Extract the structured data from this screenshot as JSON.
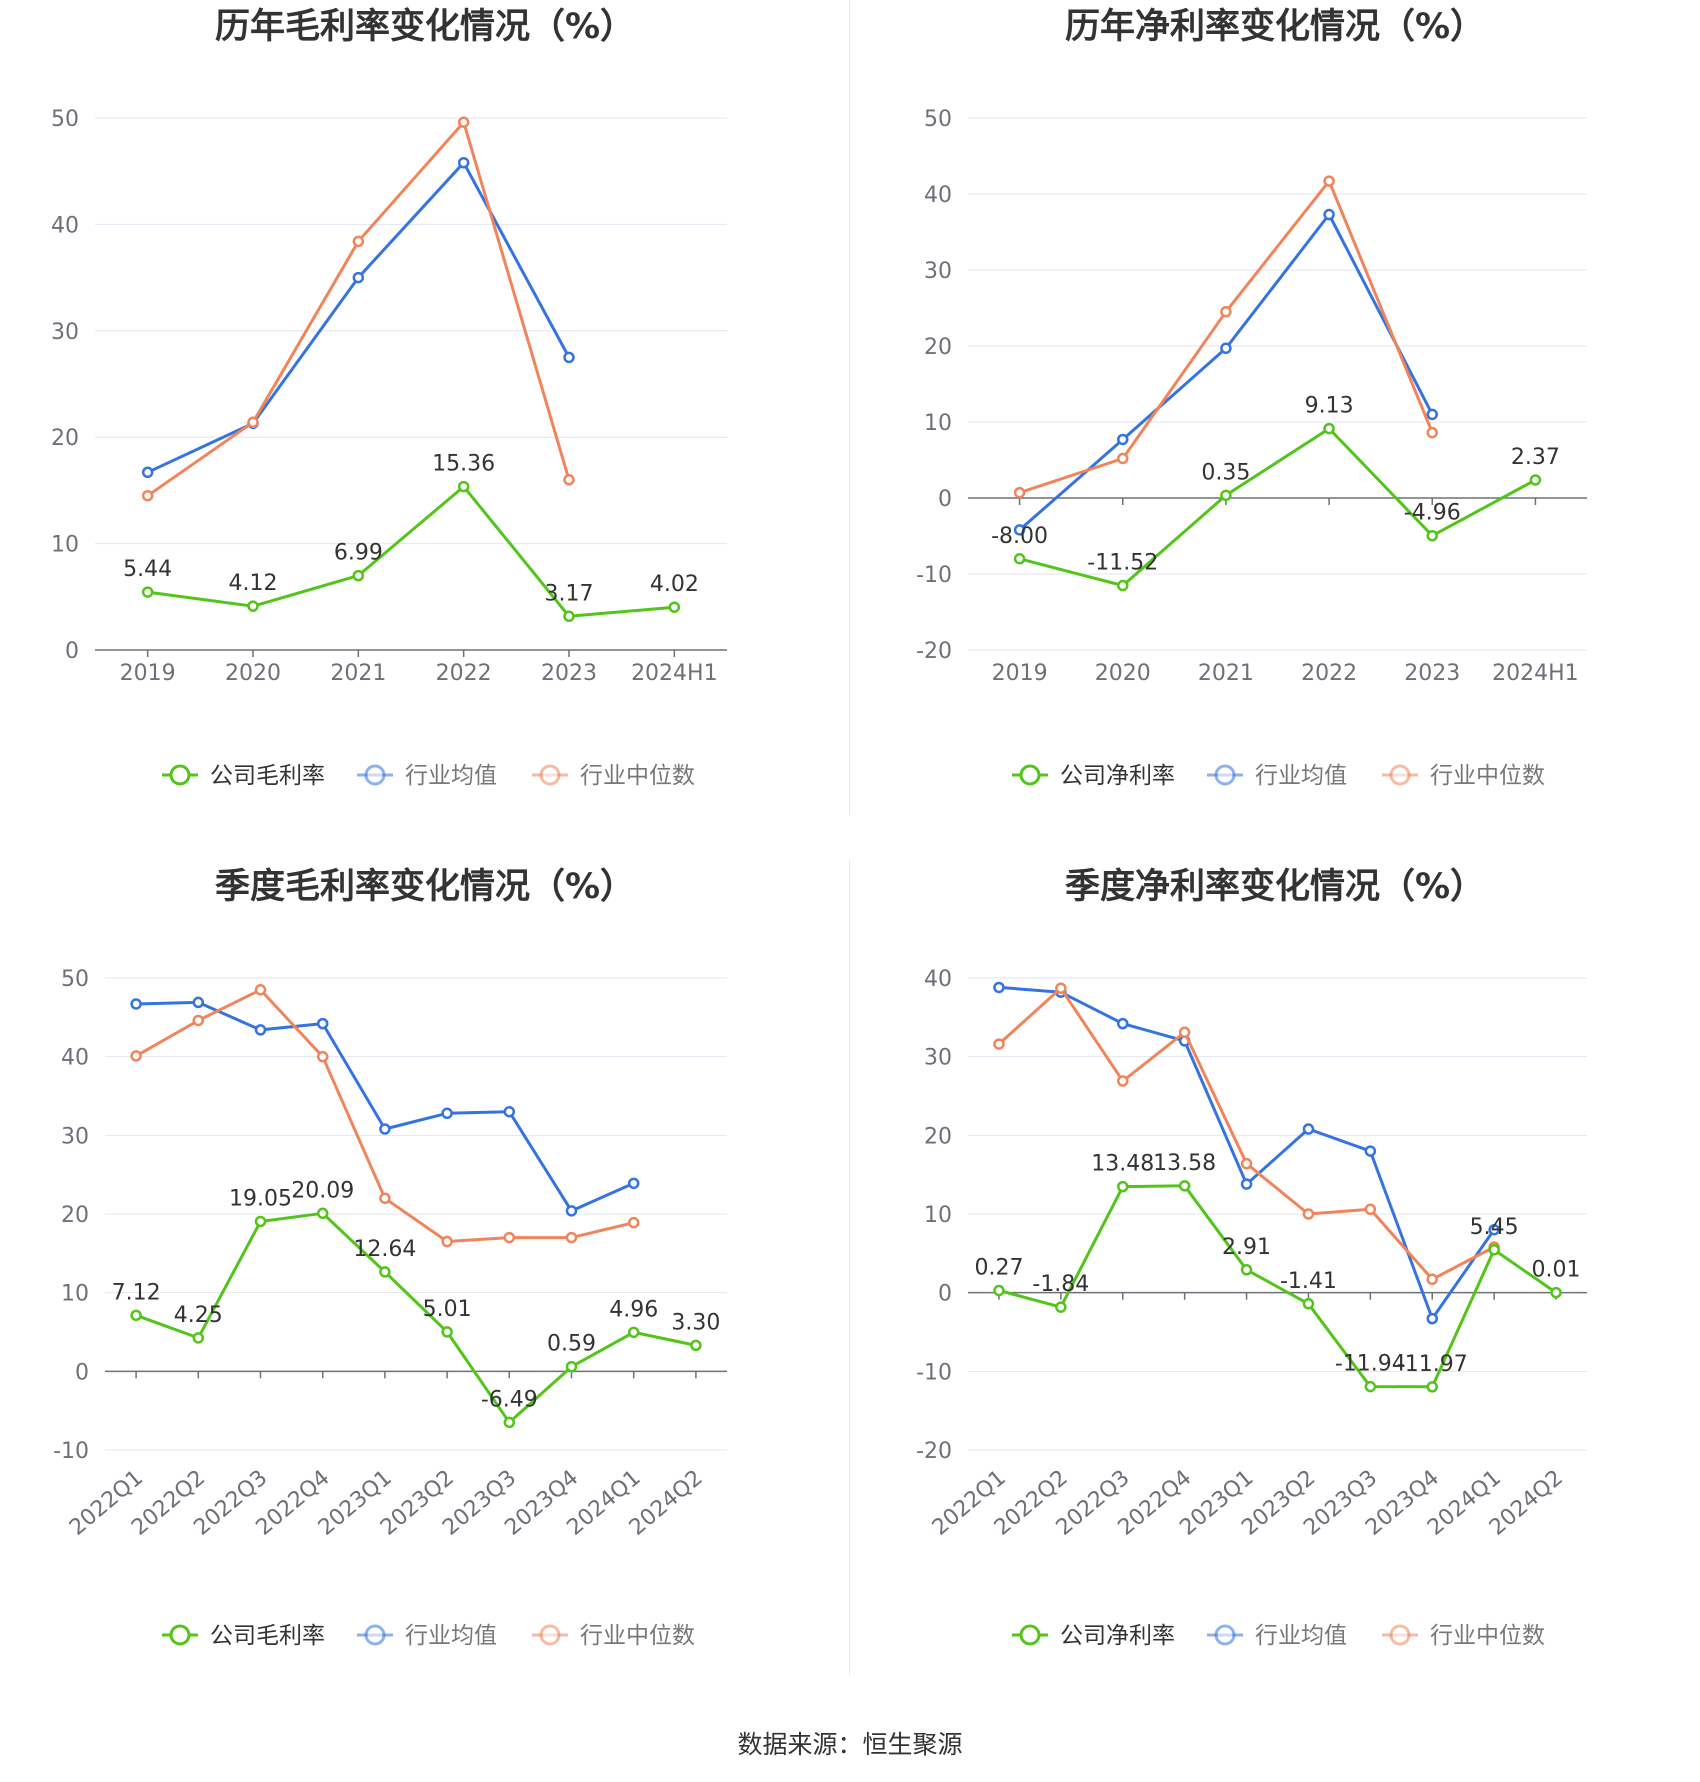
{
  "source_label": "数据来源：恒生聚源",
  "colors": {
    "company": "#52c41a",
    "avg": "#3573e0",
    "median": "#f0845a",
    "grid": "#e0e6f1",
    "axis": "#6e7079"
  },
  "legend_common": {
    "avg": "行业均值",
    "median": "行业中位数"
  },
  "chart_data": [
    {
      "type": "line",
      "title": "历年毛利率变化情况（%）",
      "categories": [
        "2019",
        "2020",
        "2021",
        "2022",
        "2023",
        "2024H1"
      ],
      "ylim": [
        0,
        50
      ],
      "yticks": [
        "0",
        "10",
        "20",
        "30",
        "40",
        "50"
      ],
      "grid": true,
      "legend": "bottom",
      "series": [
        {
          "name": "公司毛利率",
          "values": [
            5.44,
            4.12,
            6.99,
            15.36,
            3.17,
            4.02
          ],
          "labels": [
            "5.44",
            "4.12",
            "6.99",
            "15.36",
            "3.17",
            "4.02"
          ]
        },
        {
          "name": "行业均值",
          "values": [
            16.7,
            21.3,
            35.0,
            45.8,
            27.5,
            null
          ]
        },
        {
          "name": "行业中位数",
          "values": [
            14.5,
            21.4,
            38.4,
            49.6,
            16.0,
            null
          ]
        }
      ]
    },
    {
      "type": "line",
      "title": "历年净利率变化情况（%）",
      "categories": [
        "2019",
        "2020",
        "2021",
        "2022",
        "2023",
        "2024H1"
      ],
      "ylim": [
        -20,
        50
      ],
      "yticks": [
        "-20",
        "-10",
        "0",
        "10",
        "20",
        "30",
        "40",
        "50"
      ],
      "grid": true,
      "legend": "bottom",
      "series": [
        {
          "name": "公司净利率",
          "values": [
            -8.0,
            -11.52,
            0.35,
            9.13,
            -4.96,
            2.37
          ],
          "labels": [
            "-8.00",
            "-11.52",
            "0.35",
            "9.13",
            "-4.96",
            "2.37"
          ]
        },
        {
          "name": "行业均值",
          "values": [
            -4.2,
            7.7,
            19.7,
            37.3,
            11.0,
            null
          ]
        },
        {
          "name": "行业中位数",
          "values": [
            0.7,
            5.2,
            24.5,
            41.7,
            8.6,
            null
          ]
        }
      ]
    },
    {
      "type": "line",
      "title": "季度毛利率变化情况（%）",
      "categories": [
        "2022Q1",
        "2022Q2",
        "2022Q3",
        "2022Q4",
        "2023Q1",
        "2023Q2",
        "2023Q3",
        "2023Q4",
        "2024Q1",
        "2024Q2"
      ],
      "ylim": [
        -10,
        50
      ],
      "yticks": [
        "-10",
        "0",
        "10",
        "20",
        "30",
        "40",
        "50"
      ],
      "grid": true,
      "legend": "bottom",
      "series": [
        {
          "name": "公司毛利率",
          "values": [
            7.12,
            4.25,
            19.05,
            20.09,
            12.64,
            5.01,
            -6.49,
            0.59,
            4.96,
            3.3
          ],
          "labels": [
            "7.12",
            "4.25",
            "19.05",
            "20.09",
            "12.64",
            "5.01",
            "-6.49",
            "0.59",
            "4.96",
            "3.30"
          ]
        },
        {
          "name": "行业均值",
          "values": [
            46.7,
            46.9,
            43.4,
            44.2,
            30.8,
            32.8,
            33.0,
            20.4,
            23.9,
            null
          ]
        },
        {
          "name": "行业中位数",
          "values": [
            40.1,
            44.6,
            48.5,
            40.0,
            22.0,
            16.5,
            17.0,
            17.0,
            18.9,
            null
          ]
        }
      ]
    },
    {
      "type": "line",
      "title": "季度净利率变化情况（%）",
      "categories": [
        "2022Q1",
        "2022Q2",
        "2022Q3",
        "2022Q4",
        "2023Q1",
        "2023Q2",
        "2023Q3",
        "2023Q4",
        "2024Q1",
        "2024Q2"
      ],
      "ylim": [
        -20,
        40
      ],
      "yticks": [
        "-20",
        "-10",
        "0",
        "10",
        "20",
        "30",
        "40"
      ],
      "grid": true,
      "legend": "bottom",
      "series": [
        {
          "name": "公司净利率",
          "values": [
            0.27,
            -1.84,
            13.48,
            13.58,
            2.91,
            -1.41,
            -11.94,
            -11.97,
            5.45,
            0.01
          ],
          "labels": [
            "0.27",
            "-1.84",
            "13.48",
            "13.58",
            "2.91",
            "-1.41",
            "-11.94",
            "-11.97",
            "5.45",
            "0.01"
          ]
        },
        {
          "name": "行业均值",
          "values": [
            38.8,
            38.2,
            34.2,
            32.0,
            13.8,
            20.8,
            18.0,
            -3.3,
            8.0,
            null
          ]
        },
        {
          "name": "行业中位数",
          "values": [
            31.6,
            38.7,
            26.9,
            33.1,
            16.4,
            10.0,
            10.6,
            1.7,
            5.8,
            null
          ]
        }
      ]
    }
  ]
}
